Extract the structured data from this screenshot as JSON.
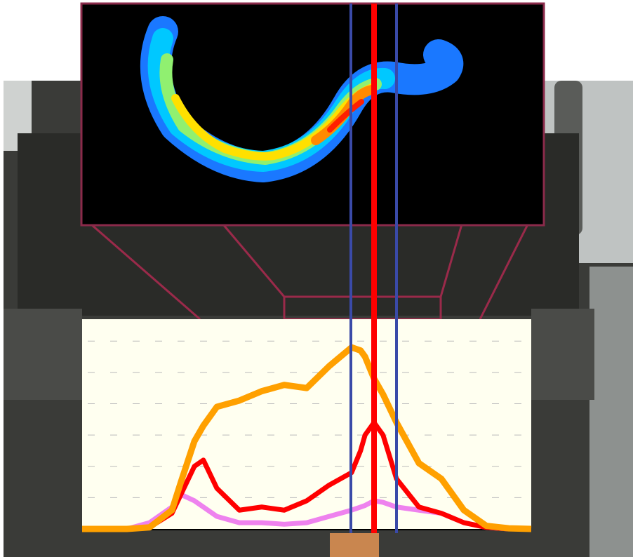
{
  "chart_data": {
    "type": "line",
    "x": [
      0,
      10,
      15,
      20,
      22,
      25,
      27,
      30,
      35,
      40,
      45,
      50,
      55,
      60,
      62,
      63,
      65,
      67,
      70,
      75,
      80,
      85,
      90,
      95,
      100
    ],
    "xlim": [
      0,
      100
    ],
    "ylim": [
      0,
      6.7
    ],
    "yticks": [
      1,
      2,
      3,
      4,
      5,
      6
    ],
    "grid": true,
    "series": [
      {
        "color": "#ffa000",
        "values": [
          0,
          0,
          0.05,
          0.6,
          1.5,
          2.8,
          3.3,
          3.9,
          4.1,
          4.4,
          4.6,
          4.5,
          5.2,
          5.8,
          5.7,
          5.5,
          4.8,
          4.3,
          3.4,
          2.1,
          1.6,
          0.6,
          0.1,
          0.02,
          0
        ]
      },
      {
        "color": "#ff0000",
        "values": [
          0,
          0,
          0.05,
          0.5,
          1.1,
          2.0,
          2.2,
          1.3,
          0.6,
          0.7,
          0.6,
          0.9,
          1.4,
          1.8,
          2.5,
          3.0,
          3.4,
          3.0,
          1.6,
          0.7,
          0.5,
          0.2,
          0.05,
          0,
          0
        ]
      },
      {
        "color": "#ee82ee",
        "values": [
          0,
          0,
          0.2,
          0.7,
          1.1,
          0.9,
          0.7,
          0.4,
          0.2,
          0.2,
          0.15,
          0.2,
          0.4,
          0.6,
          0.7,
          0.75,
          0.9,
          0.85,
          0.7,
          0.6,
          0.5,
          0.2,
          0.05,
          0,
          0
        ]
      }
    ]
  }
}
